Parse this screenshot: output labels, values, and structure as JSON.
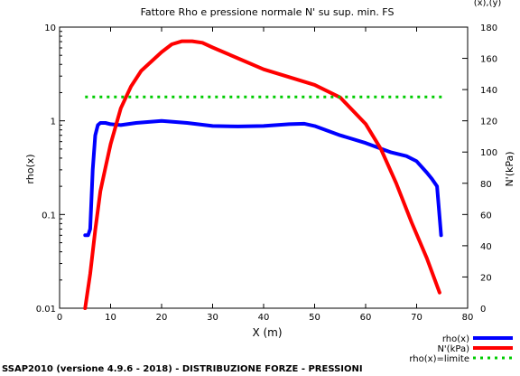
{
  "chart_data": {
    "type": "line",
    "title": "Fattore Rho e pressione normale N' su sup. min. FS",
    "corner_text": "(x),(y)",
    "xlabel": "X (m)",
    "ylabel_left": "rho(x)",
    "ylabel_right": "N'(kPa)",
    "footer": "SSAP2010 (versione 4.9.6 - 2018) - DISTRIBUZIONE FORZE - PRESSIONI",
    "xlim": [
      0,
      80
    ],
    "ylim_left": [
      0.01,
      10
    ],
    "y_left_scale": "log",
    "ylim_right": [
      0,
      180
    ],
    "x_ticks": [
      0,
      10,
      20,
      30,
      40,
      50,
      60,
      70,
      80
    ],
    "y_left_ticks": [
      0.01,
      0.1,
      1,
      10
    ],
    "y_left_tick_labels": [
      "0.01",
      "0.1",
      "1",
      "10"
    ],
    "y_right_ticks": [
      0,
      20,
      40,
      60,
      80,
      100,
      120,
      140,
      160,
      180
    ],
    "grid": false,
    "legend_position": "bottom-right",
    "series": [
      {
        "name": "rho(x)",
        "axis": "left",
        "color": "#0000ff",
        "dash": "solid",
        "x": [
          5,
          5.6,
          6,
          6.5,
          7,
          7.5,
          8,
          9,
          10,
          12,
          15,
          20,
          25,
          30,
          35,
          40,
          45,
          48,
          50,
          55,
          60,
          65,
          68,
          70,
          72,
          73,
          74,
          74.8
        ],
        "y": [
          0.06,
          0.06,
          0.07,
          0.3,
          0.7,
          0.9,
          0.95,
          0.95,
          0.92,
          0.9,
          0.95,
          1.0,
          0.95,
          0.88,
          0.87,
          0.88,
          0.92,
          0.93,
          0.88,
          0.7,
          0.58,
          0.46,
          0.42,
          0.37,
          0.28,
          0.24,
          0.2,
          0.06
        ]
      },
      {
        "name": "N'(kPa)",
        "axis": "right",
        "color": "#ff0000",
        "dash": "solid",
        "x": [
          5,
          6,
          7,
          8,
          9,
          10,
          12,
          14,
          16,
          18,
          20,
          22,
          24,
          26,
          28,
          30,
          35,
          40,
          45,
          50,
          55,
          60,
          63,
          66,
          69,
          72,
          74.5
        ],
        "y": [
          0,
          22,
          50,
          75,
          90,
          105,
          128,
          142,
          152,
          158,
          164,
          169,
          171,
          171,
          170,
          167,
          160,
          153,
          148,
          143,
          135,
          118,
          102,
          80,
          55,
          32,
          10
        ]
      },
      {
        "name": "rho(x)=limite",
        "axis": "left",
        "color": "#00cc00",
        "dash": "dotted",
        "x": [
          5,
          75
        ],
        "y": [
          1.8,
          1.8
        ]
      }
    ]
  }
}
